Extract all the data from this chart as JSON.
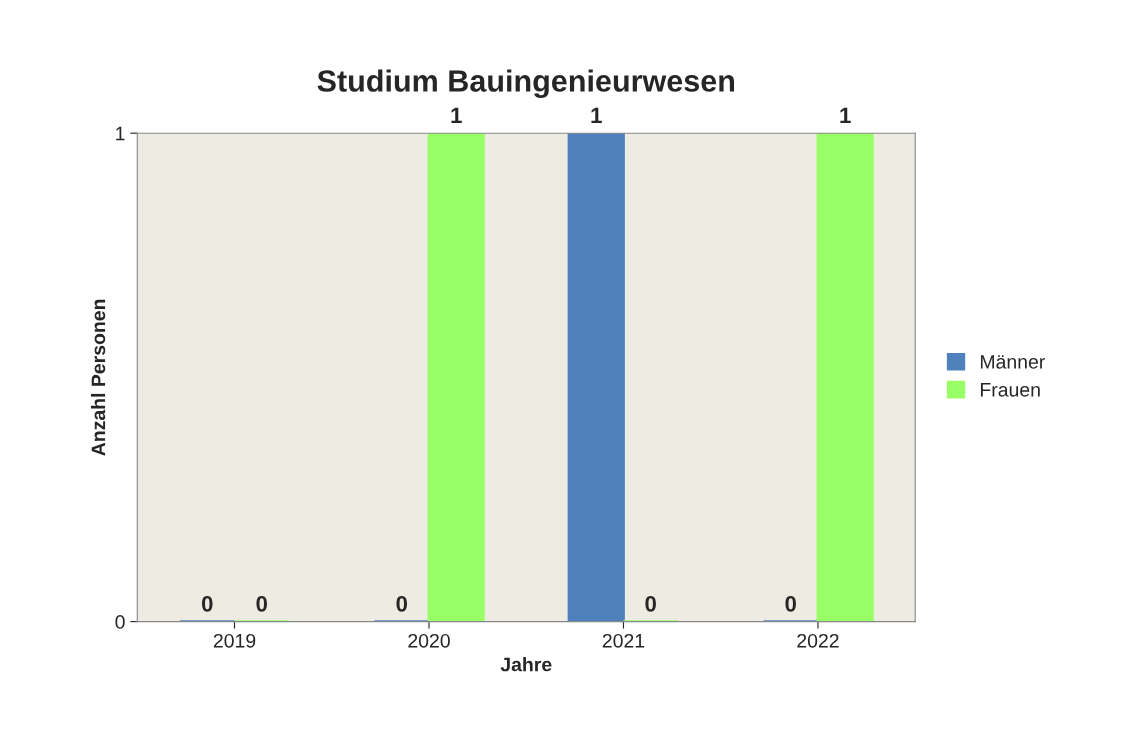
{
  "chart_data": {
    "type": "bar",
    "title": "Studium Bauingenieurwesen",
    "xlabel": "Jahre",
    "ylabel": "Anzahl Personen",
    "categories": [
      "2019",
      "2020",
      "2021",
      "2022"
    ],
    "series": [
      {
        "name": "Männer",
        "color": "#4f81bd",
        "values": [
          0,
          0,
          1,
          0
        ]
      },
      {
        "name": "Frauen",
        "color": "#99ff66",
        "values": [
          0,
          1,
          0,
          1
        ]
      }
    ],
    "ylim": [
      0,
      1
    ],
    "yticks": [
      0,
      1
    ],
    "data_labels": true,
    "legend": "right",
    "grid": false
  }
}
